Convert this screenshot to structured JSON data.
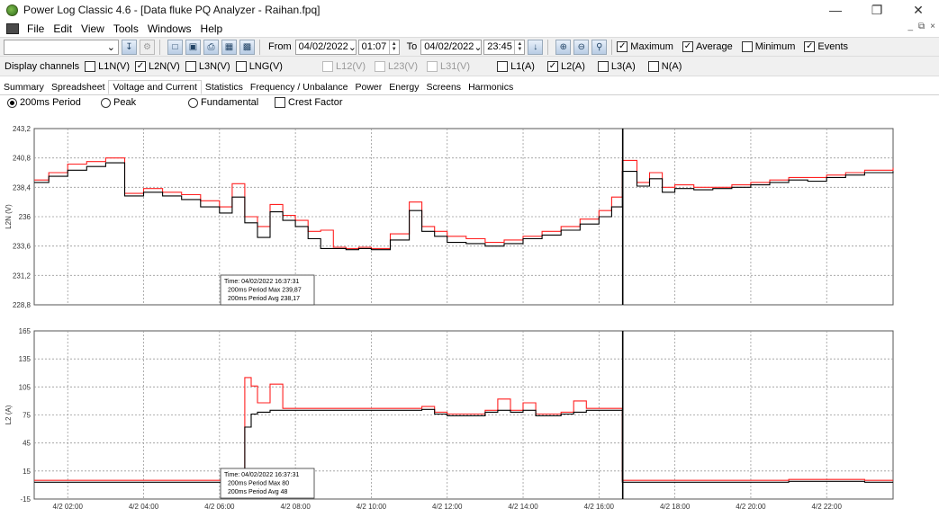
{
  "window": {
    "title": "Power Log Classic 4.6 - [Data fluke PQ Analyzer - Raihan.fpq]",
    "controls": [
      "—",
      "❐",
      "✕"
    ],
    "mdi_controls": [
      "_",
      "⧉",
      "×"
    ]
  },
  "menu": [
    "File",
    "Edit",
    "View",
    "Tools",
    "Windows",
    "Help"
  ],
  "toolbar": {
    "from_label": "From",
    "from_date": "04/02/2022",
    "from_time": "01:07",
    "to_label": "To",
    "to_date": "04/02/2022",
    "to_time": "23:45",
    "checks": [
      {
        "label": "Maximum",
        "checked": true
      },
      {
        "label": "Average",
        "checked": true
      },
      {
        "label": "Minimum",
        "checked": false
      },
      {
        "label": "Events",
        "checked": true
      }
    ]
  },
  "channels": {
    "label": "Display channels",
    "items": [
      {
        "label": "L1N(V)",
        "checked": false,
        "enabled": true
      },
      {
        "label": "L2N(V)",
        "checked": true,
        "enabled": true
      },
      {
        "label": "L3N(V)",
        "checked": false,
        "enabled": true
      },
      {
        "label": "LNG(V)",
        "checked": false,
        "enabled": true
      },
      {
        "label": "L12(V)",
        "checked": false,
        "enabled": false
      },
      {
        "label": "L23(V)",
        "checked": false,
        "enabled": false
      },
      {
        "label": "L31(V)",
        "checked": false,
        "enabled": false
      },
      {
        "label": "L1(A)",
        "checked": false,
        "enabled": true
      },
      {
        "label": "L2(A)",
        "checked": true,
        "enabled": true
      },
      {
        "label": "L3(A)",
        "checked": false,
        "enabled": true
      },
      {
        "label": "N(A)",
        "checked": false,
        "enabled": true
      }
    ]
  },
  "tabs": [
    "Summary",
    "Spreadsheet",
    "Voltage and Current",
    "Statistics",
    "Frequency / Unbalance",
    "Power",
    "Energy",
    "Screens",
    "Harmonics"
  ],
  "active_tab": "Voltage and Current",
  "radios": {
    "options": [
      "200ms Period",
      "Peak",
      "Fundamental"
    ],
    "selected": "200ms Period",
    "crest_factor": "Crest Factor"
  },
  "colors": {
    "max_series": "#ff2020",
    "avg_series": "#000000",
    "cursor": "#000000",
    "grid": "#9a9a9a"
  },
  "chart_data": [
    {
      "type": "line",
      "step": true,
      "ylabel": "L2N (V)",
      "ylim": [
        228.8,
        243.2
      ],
      "yticks": [
        "243,2",
        "240,8",
        "238,4",
        "236",
        "233,6",
        "231,2",
        "228,8"
      ],
      "x": [
        "01:07",
        "01:30",
        "02:00",
        "02:30",
        "03:00",
        "03:30",
        "04:00",
        "04:30",
        "05:00",
        "05:30",
        "06:00",
        "06:20",
        "06:40",
        "07:00",
        "07:20",
        "07:40",
        "08:00",
        "08:20",
        "08:40",
        "09:00",
        "09:20",
        "09:40",
        "10:00",
        "10:30",
        "11:00",
        "11:20",
        "11:40",
        "12:00",
        "12:30",
        "13:00",
        "13:30",
        "14:00",
        "14:30",
        "15:00",
        "15:30",
        "16:00",
        "16:20",
        "16:37",
        "17:00",
        "17:20",
        "17:40",
        "18:00",
        "18:30",
        "19:00",
        "19:30",
        "20:00",
        "20:30",
        "21:00",
        "21:30",
        "22:00",
        "22:30",
        "23:00",
        "23:45"
      ],
      "series": [
        {
          "name": "200ms Period Max",
          "values": [
            239.0,
            239.6,
            240.3,
            240.5,
            240.8,
            237.9,
            238.3,
            238.0,
            237.8,
            237.3,
            236.8,
            238.7,
            236.0,
            235.2,
            237.0,
            236.1,
            235.7,
            234.8,
            234.9,
            233.5,
            233.4,
            233.5,
            233.4,
            234.6,
            237.2,
            235.2,
            234.8,
            234.4,
            234.2,
            233.9,
            234.1,
            234.4,
            234.8,
            235.2,
            235.8,
            236.5,
            237.6,
            240.6,
            238.8,
            239.6,
            238.4,
            238.6,
            238.4,
            238.4,
            238.6,
            238.8,
            239.0,
            239.2,
            239.2,
            239.4,
            239.6,
            239.8,
            240.0
          ]
        },
        {
          "name": "200ms Period Avg",
          "values": [
            238.8,
            239.3,
            239.8,
            240.1,
            240.4,
            237.7,
            238.0,
            237.7,
            237.4,
            236.8,
            236.3,
            237.6,
            235.5,
            234.3,
            236.4,
            235.7,
            235.2,
            234.2,
            233.4,
            233.4,
            233.3,
            233.4,
            233.3,
            234.1,
            236.5,
            234.8,
            234.4,
            233.9,
            233.8,
            233.6,
            233.8,
            234.2,
            234.5,
            234.9,
            235.4,
            236.0,
            236.8,
            239.7,
            238.5,
            239.1,
            238.0,
            238.3,
            238.2,
            238.3,
            238.4,
            238.6,
            238.8,
            239.0,
            238.9,
            239.2,
            239.4,
            239.6,
            239.7
          ]
        }
      ],
      "cursor_time": "16:37:31",
      "tooltip": [
        "Time: 04/02/2022 16:37:31",
        "200ms Period Max 239,87",
        "200ms Period Avg 238,17"
      ]
    },
    {
      "type": "line",
      "step": true,
      "ylabel": "L2 (A)",
      "ylim": [
        -15,
        165
      ],
      "yticks": [
        "165",
        "135",
        "105",
        "75",
        "45",
        "15",
        "-15"
      ],
      "x": [
        "01:07",
        "02:00",
        "03:00",
        "04:00",
        "05:00",
        "06:00",
        "06:40",
        "06:50",
        "07:00",
        "07:20",
        "07:40",
        "08:00",
        "09:00",
        "10:00",
        "11:00",
        "11:20",
        "11:40",
        "12:00",
        "12:30",
        "13:00",
        "13:20",
        "13:40",
        "14:00",
        "14:20",
        "14:40",
        "15:00",
        "15:20",
        "15:40",
        "16:00",
        "16:30",
        "16:37",
        "17:00",
        "18:00",
        "19:00",
        "20:00",
        "21:00",
        "22:00",
        "23:00",
        "23:45"
      ],
      "series": [
        {
          "name": "200ms Period Max",
          "values": [
            5,
            5,
            5,
            5,
            5,
            5,
            115,
            106,
            88,
            108,
            82,
            82,
            82,
            82,
            82,
            84,
            78,
            76,
            76,
            80,
            92,
            80,
            88,
            76,
            76,
            78,
            90,
            82,
            82,
            82,
            5,
            5,
            5,
            5,
            5,
            6,
            6,
            5,
            5
          ]
        },
        {
          "name": "200ms Period Avg",
          "values": [
            3,
            3,
            3,
            3,
            3,
            3,
            62,
            76,
            78,
            80,
            80,
            80,
            80,
            80,
            80,
            81,
            76,
            74,
            74,
            78,
            80,
            78,
            80,
            74,
            74,
            76,
            78,
            80,
            80,
            80,
            3,
            3,
            3,
            3,
            3,
            4,
            4,
            3,
            3
          ]
        }
      ],
      "cursor_time": "16:37:31",
      "tooltip": [
        "Time: 04/02/2022 16:37:31",
        "200ms Period Max 80",
        "200ms Period Avg 48"
      ]
    }
  ],
  "x_ticks": [
    "4/2 02:00",
    "4/2 04:00",
    "4/2 06:00",
    "4/2 08:00",
    "4/2 10:00",
    "4/2 12:00",
    "4/2 14:00",
    "4/2 16:00",
    "4/2 18:00",
    "4/2 20:00",
    "4/2 22:00"
  ]
}
